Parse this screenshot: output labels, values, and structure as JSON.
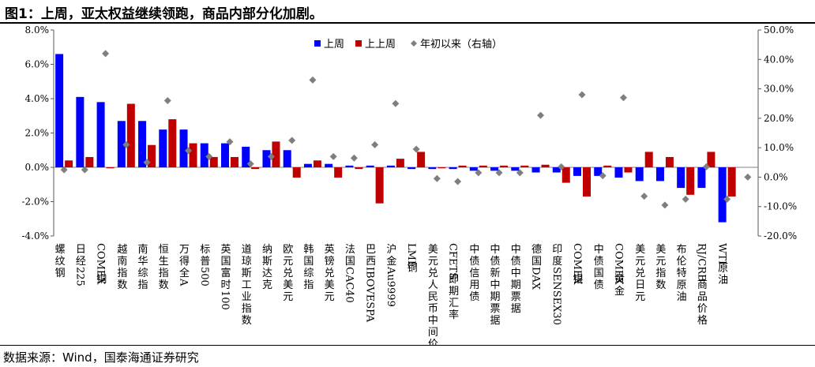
{
  "title": "图1：上周，亚太权益继续领跑，商品内部分化加剧。",
  "source": "数据来源：Wind，国泰海通证券研究",
  "colors": {
    "last_week": "#0000ff",
    "week_before": "#c00000",
    "ytd": "#7f7f7f"
  },
  "chart_data": {
    "type": "bar",
    "categories": [
      "螺纹钢",
      "日经225",
      "COMEX铜",
      "越南指数",
      "南华综指",
      "恒生指数",
      "万得全A",
      "标普500",
      "英国富时100",
      "道琼斯工业指数",
      "纳斯达克",
      "欧元兑美元",
      "韩国综指",
      "英镑兑美元",
      "法国CAC40",
      "巴西IBOVESPA",
      "沪金Au9999",
      "LME铜",
      "美元兑人民币中间价",
      "CFETS即期汇率",
      "中债信用债",
      "中债新中期票据",
      "中债中期票据",
      "德国DAX",
      "印度SENSEX30",
      "COMEX银",
      "中债国债",
      "COMEX黄金",
      "美元兑日元",
      "美元指数",
      "布伦特原油",
      "RJ/CRB商品价格",
      "WTI原油",
      ""
    ],
    "series": [
      {
        "name": "上周",
        "axis": "left",
        "values": [
          6.6,
          4.1,
          3.8,
          2.7,
          2.7,
          2.2,
          2.2,
          1.4,
          1.4,
          1.2,
          1.0,
          1.0,
          0.2,
          0.2,
          0.1,
          0.1,
          0.1,
          -0.1,
          -0.1,
          -0.1,
          -0.2,
          -0.2,
          -0.2,
          -0.3,
          -0.3,
          -0.5,
          -0.5,
          -0.6,
          -0.8,
          -0.8,
          -1.2,
          -1.2,
          -3.2,
          null
        ]
      },
      {
        "name": "上上周",
        "axis": "left",
        "values": [
          0.4,
          0.6,
          0.0,
          3.7,
          1.3,
          2.8,
          1.4,
          0.6,
          0.6,
          -0.1,
          1.5,
          -0.6,
          0.4,
          -0.6,
          -0.1,
          -2.1,
          0.5,
          0.9,
          -0.05,
          0.1,
          0.1,
          0.1,
          0.1,
          0.15,
          -0.9,
          -1.7,
          0.1,
          -0.3,
          0.9,
          0.6,
          -1.6,
          0.9,
          -1.7,
          null
        ]
      },
      {
        "name": "年初以来（右轴）",
        "axis": "right",
        "type": "scatter",
        "values": [
          2.5,
          2.5,
          42,
          11,
          5,
          26,
          9,
          7,
          12,
          4.5,
          7,
          12.5,
          33,
          7,
          6.5,
          11,
          25,
          9.5,
          -0.5,
          -1.5,
          1.5,
          1.5,
          1.5,
          21,
          3.5,
          28,
          0.5,
          27,
          -6.5,
          -9.5,
          -7.5,
          3.5,
          -7.5,
          0.0
        ]
      }
    ],
    "y_left": {
      "min": -4.0,
      "max": 8.0,
      "step": 2.0,
      "format": "percent1"
    },
    "y_right": {
      "min": -20.0,
      "max": 50.0,
      "step": 10.0,
      "format": "percent1"
    },
    "legend": {
      "position": "top-center"
    }
  }
}
